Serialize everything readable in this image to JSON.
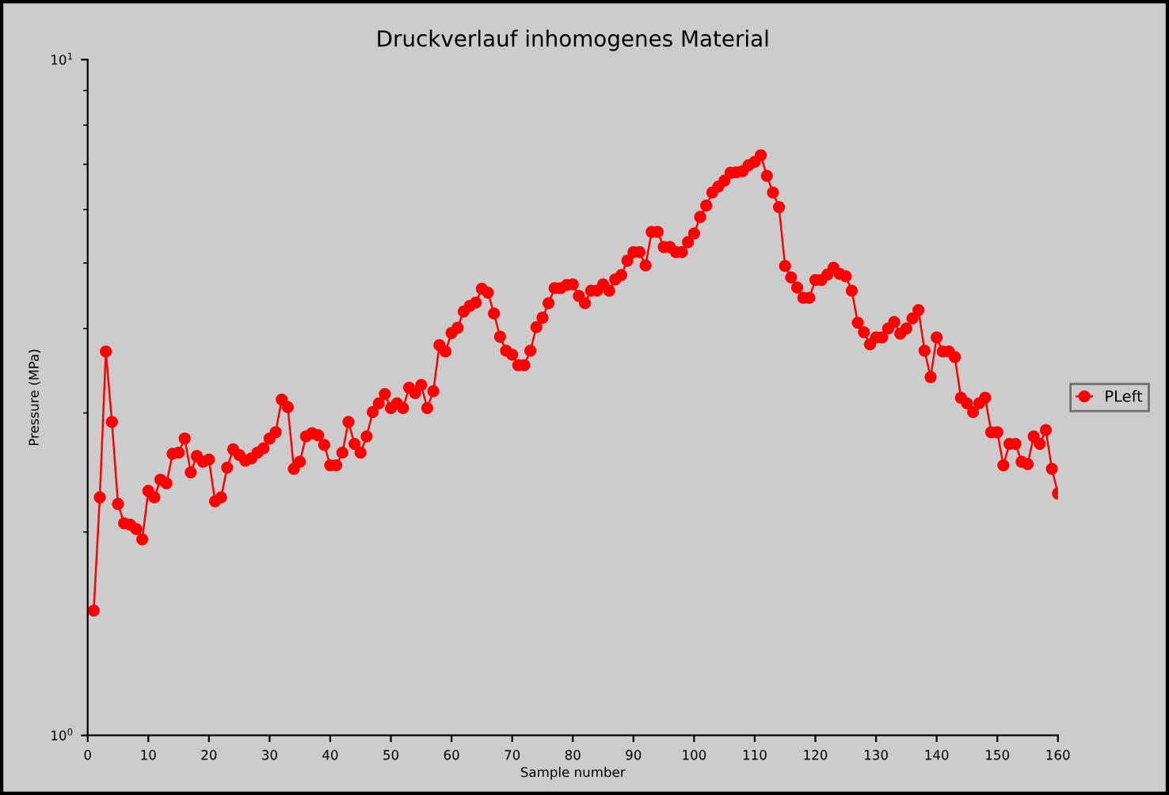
{
  "chart_data": {
    "type": "line",
    "title": "Druckverlauf inhomogenes Material",
    "xlabel": "Sample number",
    "ylabel": "Pressure (MPa)",
    "x": [
      1,
      2,
      3,
      4,
      5,
      6,
      7,
      8,
      9,
      10,
      11,
      12,
      13,
      14,
      15,
      16,
      17,
      18,
      19,
      20,
      21,
      22,
      23,
      24,
      25,
      26,
      27,
      28,
      29,
      30,
      31,
      32,
      33,
      34,
      35,
      36,
      37,
      38,
      39,
      40,
      41,
      42,
      43,
      44,
      45,
      46,
      47,
      48,
      49,
      50,
      51,
      52,
      53,
      54,
      55,
      56,
      57,
      58,
      59,
      60,
      61,
      62,
      63,
      64,
      65,
      66,
      67,
      68,
      69,
      70,
      71,
      72,
      73,
      74,
      75,
      76,
      77,
      78,
      79,
      80,
      81,
      82,
      83,
      84,
      85,
      86,
      87,
      88,
      89,
      90,
      91,
      92,
      93,
      94,
      95,
      96,
      97,
      98,
      99,
      100,
      101,
      102,
      103,
      104,
      105,
      106,
      107,
      108,
      109,
      110,
      111,
      112,
      113,
      114,
      115,
      116,
      117,
      118,
      119,
      120,
      121,
      122,
      123,
      124,
      125,
      126,
      127,
      128,
      129,
      130,
      131,
      132,
      133,
      134,
      135,
      136,
      137,
      138,
      139,
      140,
      141,
      142,
      143,
      144,
      145,
      146,
      147,
      148,
      149,
      150,
      151,
      152,
      153,
      154,
      155,
      156,
      157,
      158,
      159,
      160
    ],
    "series": [
      {
        "name": "PLeft",
        "color": "#ff0000",
        "values": [
          1.53,
          2.25,
          3.7,
          2.91,
          2.2,
          2.06,
          2.05,
          2.02,
          1.95,
          2.3,
          2.25,
          2.39,
          2.36,
          2.61,
          2.62,
          2.75,
          2.45,
          2.59,
          2.54,
          2.56,
          2.22,
          2.25,
          2.49,
          2.65,
          2.6,
          2.55,
          2.57,
          2.62,
          2.66,
          2.75,
          2.81,
          3.14,
          3.06,
          2.48,
          2.54,
          2.77,
          2.8,
          2.78,
          2.69,
          2.51,
          2.51,
          2.62,
          2.91,
          2.7,
          2.62,
          2.77,
          3.01,
          3.1,
          3.2,
          3.05,
          3.1,
          3.05,
          3.27,
          3.21,
          3.3,
          3.05,
          3.23,
          3.78,
          3.7,
          3.94,
          4.01,
          4.24,
          4.32,
          4.37,
          4.58,
          4.52,
          4.21,
          3.89,
          3.71,
          3.66,
          3.53,
          3.53,
          3.71,
          4.02,
          4.15,
          4.36,
          4.59,
          4.59,
          4.64,
          4.65,
          4.47,
          4.36,
          4.55,
          4.55,
          4.65,
          4.55,
          4.73,
          4.8,
          5.04,
          5.19,
          5.19,
          4.96,
          5.56,
          5.56,
          5.28,
          5.28,
          5.19,
          5.19,
          5.37,
          5.53,
          5.85,
          6.08,
          6.36,
          6.49,
          6.62,
          6.8,
          6.81,
          6.84,
          6.98,
          7.06,
          7.22,
          6.73,
          6.36,
          6.05,
          4.95,
          4.76,
          4.6,
          4.44,
          4.44,
          4.72,
          4.72,
          4.81,
          4.92,
          4.82,
          4.78,
          4.55,
          4.08,
          3.95,
          3.79,
          3.88,
          3.88,
          4.0,
          4.09,
          3.93,
          4.0,
          4.14,
          4.26,
          3.71,
          3.39,
          3.88,
          3.7,
          3.7,
          3.63,
          3.16,
          3.1,
          3.01,
          3.1,
          3.16,
          2.81,
          2.81,
          2.51,
          2.7,
          2.7,
          2.54,
          2.52,
          2.77,
          2.7,
          2.83,
          2.48,
          2.28
        ]
      }
    ],
    "log": "y",
    "xlim": [
      0,
      160
    ],
    "xticks": [
      0,
      10,
      20,
      30,
      40,
      50,
      60,
      70,
      80,
      90,
      100,
      110,
      120,
      130,
      140,
      150,
      160
    ],
    "ylim": [
      1,
      10
    ],
    "yticks": [
      {
        "value": 1,
        "label": "10$^{0}$"
      },
      {
        "value": 10,
        "label": "10$^{1}$"
      }
    ],
    "marker": "circle",
    "line_style": "solid",
    "grid": false,
    "legend": "right"
  }
}
